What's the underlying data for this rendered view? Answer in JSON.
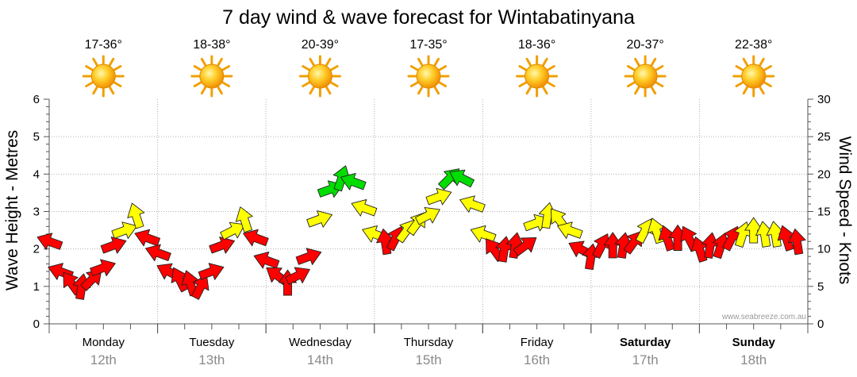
{
  "chart_data": {
    "type": "line",
    "title": "7 day wind & wave forecast for Wintabatinyana",
    "ylabel": "Wave Height - Metres",
    "y2label": "Wind Speed - Knots",
    "ylim": [
      0,
      6
    ],
    "y2lim": [
      0,
      30
    ],
    "yticks": [
      "0",
      "1",
      "2",
      "3",
      "4",
      "5",
      "6"
    ],
    "y2ticks": [
      "0",
      "5",
      "10",
      "15",
      "20",
      "25",
      "30"
    ],
    "grid": true,
    "days": [
      {
        "day": "Monday",
        "date": "12th",
        "temp": "17-36°",
        "bold": false
      },
      {
        "day": "Tuesday",
        "date": "13th",
        "temp": "18-38°",
        "bold": false
      },
      {
        "day": "Wednesday",
        "date": "14th",
        "temp": "20-39°",
        "bold": false
      },
      {
        "day": "Thursday",
        "date": "15th",
        "temp": "17-35°",
        "bold": false
      },
      {
        "day": "Friday",
        "date": "16th",
        "temp": "18-36°",
        "bold": false
      },
      {
        "day": "Saturday",
        "date": "17th",
        "temp": "20-37°",
        "bold": true
      },
      {
        "day": "Sunday",
        "date": "18th",
        "temp": "22-38°",
        "bold": true
      }
    ],
    "weather_icon": "sun-icon",
    "credit": "www.seabreeze.com.au",
    "colors": {
      "light": "#ff0000",
      "moderate": "#ffff00",
      "fresh": "#00dd00"
    },
    "series": [
      {
        "name": "Wind Speed (knots)",
        "x_days": [
          0.0,
          0.1,
          0.2,
          0.3,
          0.4,
          0.5,
          0.6,
          0.7,
          0.8,
          0.9,
          1.0,
          1.1,
          1.2,
          1.3,
          1.4,
          1.5,
          1.6,
          1.7,
          1.8,
          1.9,
          2.0,
          2.1,
          2.2,
          2.3,
          2.4,
          2.5,
          2.6,
          2.7,
          2.8,
          2.9,
          3.0,
          3.1,
          3.2,
          3.3,
          3.4,
          3.5,
          3.6,
          3.7,
          3.8,
          3.9,
          4.0,
          4.1,
          4.2,
          4.3,
          4.4,
          4.5,
          4.6,
          4.7,
          4.8,
          4.9,
          5.0,
          5.1,
          5.2,
          5.3,
          5.4,
          5.5,
          5.6,
          5.7,
          5.8,
          5.9,
          6.0,
          6.1,
          6.2,
          6.3,
          6.4,
          6.5,
          6.6,
          6.7,
          6.8,
          6.9
        ],
        "values": [
          11,
          7,
          5.5,
          5,
          6,
          7.5,
          10.5,
          12.5,
          14.5,
          11.5,
          9.5,
          7,
          6,
          5.5,
          5,
          7,
          10.5,
          12.5,
          14,
          11.5,
          8.5,
          6.5,
          5.5,
          6.5,
          9,
          14,
          18,
          19.5,
          19,
          15.5,
          12,
          11,
          11.5,
          12.5,
          13.5,
          14.5,
          17,
          19.5,
          19.5,
          16,
          12,
          10,
          10,
          10.5,
          10.5,
          13.5,
          14.5,
          14,
          12.5,
          10,
          9,
          10.5,
          10.5,
          10.5,
          11,
          12.5,
          12.5,
          11.5,
          11.5,
          11.5,
          10,
          10.5,
          10.5,
          11.5,
          12,
          12.5,
          12,
          12,
          11.5,
          11
        ]
      }
    ]
  }
}
